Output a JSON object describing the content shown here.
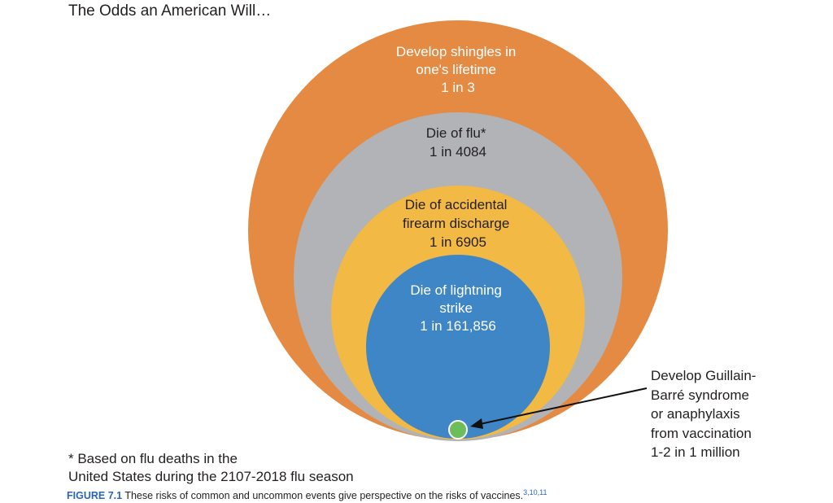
{
  "title": "The Odds an American Will…",
  "circles": [
    {
      "lines": [
        "Develop shingles in",
        "one's lifetime",
        "1 in 3"
      ],
      "color": "#e48a42"
    },
    {
      "lines": [
        "Die of flu*",
        "1 in 4084"
      ],
      "color": "#b1b3b6"
    },
    {
      "lines": [
        "Die of accidental",
        "firearm discharge",
        "1 in 6905"
      ],
      "color": "#f2b944"
    },
    {
      "lines": [
        "Die of lightning",
        "strike",
        "1 in 161,856"
      ],
      "color": "#3f86c6"
    }
  ],
  "small_circle": {
    "color": "#6dbe5a"
  },
  "callout": [
    "Develop Guillain-",
    "Barré syndrome",
    "or anaphylaxis",
    "from vaccination",
    "1-2 in 1 million"
  ],
  "footnote": [
    "* Based on flu deaths in the",
    "United States during the 2107-2018 flu season"
  ],
  "caption": {
    "label": "FIGURE 7.1",
    "text": " These risks of common and uncommon events give perspective on the risks of vaccines.",
    "refs": "3,10,11"
  }
}
